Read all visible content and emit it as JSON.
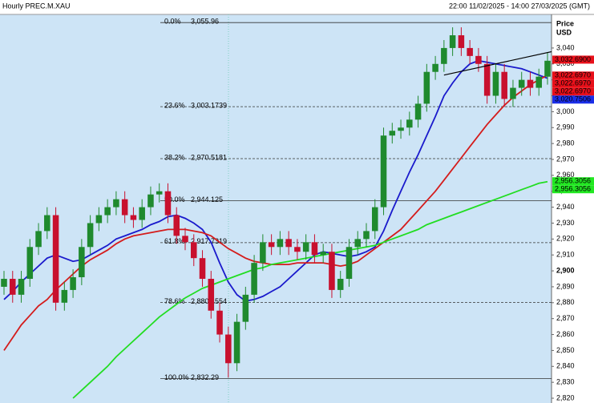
{
  "chart_data": {
    "type": "candlestick",
    "title": "Hourly PREC.M.XAU",
    "subtitle": "22:00 11/02/2025 - 14:00 27/03/2025 (GMT)",
    "y_axis_label": [
      "Price",
      "USD"
    ],
    "ylim": [
      2818.5,
      3061.1
    ],
    "yticks": [
      {
        "value": 2820,
        "label": "2,820"
      },
      {
        "value": 2830,
        "label": "2,830"
      },
      {
        "value": 2840,
        "label": "2,840"
      },
      {
        "value": 2850,
        "label": "2,850"
      },
      {
        "value": 2860,
        "label": "2,860"
      },
      {
        "value": 2870,
        "label": "2,870"
      },
      {
        "value": 2880,
        "label": "2,880"
      },
      {
        "value": 2890,
        "label": "2,890"
      },
      {
        "value": 2900,
        "label": "2,900"
      },
      {
        "value": 2910,
        "label": "2,910"
      },
      {
        "value": 2920,
        "label": "2,920"
      },
      {
        "value": 2930,
        "label": "2,930"
      },
      {
        "value": 2940,
        "label": "2,940"
      },
      {
        "value": 2950,
        "label": "2,950"
      },
      {
        "value": 2960,
        "label": "2,960"
      },
      {
        "value": 2970,
        "label": "2,970"
      },
      {
        "value": 2980,
        "label": "2,980"
      },
      {
        "value": 2990,
        "label": "2,990"
      },
      {
        "value": 3000,
        "label": "3,000"
      },
      {
        "value": 3010,
        "label": "3,010"
      },
      {
        "value": 3020,
        "label": "3,020"
      },
      {
        "value": 3030,
        "label": "3,030"
      },
      {
        "value": 3040,
        "label": "3,040"
      }
    ],
    "bold_ytick": 2900,
    "up_color": "#1f8a2e",
    "down_color": "#c8102e",
    "open": [
      2890,
      2895,
      2885,
      2895,
      2915,
      2925,
      2935,
      2880,
      2888,
      2896,
      2915,
      2930,
      2935,
      2940,
      2945,
      2935,
      2932,
      2940,
      2948,
      2950,
      2935,
      2922,
      2918,
      2908,
      2895,
      2875,
      2860,
      2842,
      2868,
      2885,
      2905,
      2918,
      2915,
      2920,
      2915,
      2912,
      2918,
      2910,
      2912,
      2888,
      2895,
      2915,
      2920,
      2925,
      2940,
      2985,
      2988,
      2990,
      2995,
      3005,
      3025,
      3030,
      3040,
      3048,
      3040,
      3035,
      3030,
      3010,
      3025,
      3008,
      3015,
      3020,
      3015,
      3022
    ],
    "high": [
      2900,
      2900,
      2900,
      2920,
      2930,
      2940,
      2940,
      2893,
      2901,
      2920,
      2935,
      2940,
      2945,
      2950,
      2950,
      2940,
      2945,
      2953,
      2955,
      2955,
      2940,
      2927,
      2923,
      2913,
      2900,
      2880,
      2865,
      2873,
      2890,
      2910,
      2923,
      2923,
      2925,
      2925,
      2920,
      2923,
      2923,
      2917,
      2917,
      2900,
      2920,
      2925,
      2930,
      2945,
      2990,
      2993,
      2995,
      3000,
      3010,
      3030,
      3035,
      3045,
      3053,
      3053,
      3045,
      3040,
      3035,
      3030,
      3030,
      3020,
      3025,
      3025,
      3027,
      3037
    ],
    "low": [
      2885,
      2880,
      2880,
      2890,
      2910,
      2920,
      2875,
      2875,
      2883,
      2891,
      2910,
      2925,
      2930,
      2935,
      2930,
      2927,
      2927,
      2935,
      2943,
      2930,
      2917,
      2913,
      2903,
      2890,
      2870,
      2855,
      2833,
      2837,
      2863,
      2880,
      2900,
      2910,
      2910,
      2910,
      2907,
      2907,
      2905,
      2905,
      2883,
      2883,
      2890,
      2910,
      2915,
      2920,
      2935,
      2980,
      2983,
      2985,
      2990,
      3000,
      3020,
      3025,
      3035,
      3035,
      3030,
      3025,
      3005,
      3005,
      3003,
      3003,
      3010,
      3010,
      3010,
      3017
    ],
    "close": [
      2895,
      2885,
      2895,
      2915,
      2925,
      2935,
      2880,
      2888,
      2896,
      2915,
      2930,
      2935,
      2940,
      2945,
      2935,
      2932,
      2940,
      2948,
      2950,
      2935,
      2922,
      2918,
      2908,
      2895,
      2875,
      2860,
      2842,
      2868,
      2885,
      2905,
      2918,
      2915,
      2920,
      2915,
      2912,
      2918,
      2910,
      2912,
      2888,
      2895,
      2915,
      2920,
      2925,
      2940,
      2985,
      2988,
      2990,
      2995,
      3005,
      3025,
      3030,
      3040,
      3048,
      3040,
      3035,
      3030,
      3010,
      3025,
      3008,
      3015,
      3020,
      3015,
      3022,
      3032
    ],
    "series": [
      {
        "color": "#1a1acc",
        "values": [
          2882,
          2887,
          2893,
          2898,
          2903,
          2908,
          2910,
          2908,
          2906,
          2907,
          2910,
          2913,
          2916,
          2920,
          2922,
          2924,
          2926,
          2929,
          2931,
          2934,
          2935,
          2933,
          2930,
          2926,
          2918,
          2905,
          2893,
          2885,
          2881,
          2882,
          2884,
          2887,
          2890,
          2895,
          2900,
          2905,
          2910,
          2912,
          2911,
          2910,
          2909,
          2910,
          2912,
          2915,
          2925,
          2938,
          2950,
          2962,
          2973,
          2985,
          2997,
          3010,
          3018,
          3025,
          3030,
          3032,
          3031,
          3030,
          3029,
          3028,
          3027,
          3025,
          3023,
          3021
        ]
      },
      {
        "color": "#d41c1c",
        "values": [
          2850,
          2858,
          2866,
          2872,
          2878,
          2882,
          2888,
          2893,
          2898,
          2903,
          2907,
          2910,
          2913,
          2917,
          2920,
          2922,
          2923,
          2924,
          2925,
          2926,
          2926,
          2926,
          2925,
          2924,
          2922,
          2918,
          2914,
          2911,
          2908,
          2906,
          2905,
          2904,
          2904,
          2904,
          2905,
          2905,
          2905,
          2905,
          2904,
          2903,
          2904,
          2906,
          2910,
          2914,
          2918,
          2922,
          2926,
          2932,
          2938,
          2944,
          2950,
          2957,
          2964,
          2971,
          2978,
          2985,
          2992,
          2998,
          3004,
          3009,
          3013,
          3017,
          3020,
          3023
        ]
      },
      {
        "color": "#22dd22",
        "values": [
          null,
          null,
          null,
          null,
          null,
          null,
          null,
          null,
          2820,
          2825,
          2830,
          2835,
          2840,
          2846,
          2851,
          2856,
          2861,
          2866,
          2871,
          2875,
          2879,
          2883,
          2886,
          2889,
          2891,
          2893,
          2895,
          2897,
          2899,
          2901,
          2902,
          2904,
          2905,
          2906,
          2907,
          2908,
          2909,
          2910,
          2911,
          2912,
          2913,
          2914,
          2915,
          2916,
          2918,
          2920,
          2922,
          2924,
          2926,
          2929,
          2931,
          2933,
          2935,
          2937,
          2939,
          2941,
          2943,
          2945,
          2947,
          2949,
          2951,
          2953,
          2955,
          2956
        ]
      }
    ],
    "fib_levels": [
      {
        "ratio": "0.0%",
        "label": "3,055.96",
        "value": 3055.96,
        "style": "solid"
      },
      {
        "ratio": "23.6%",
        "label": "3,003.1739",
        "value": 3003.1739,
        "style": "dashed"
      },
      {
        "ratio": "38.2%",
        "label": "2,970.5181",
        "value": 2970.5181,
        "style": "dashed"
      },
      {
        "ratio": "50.0%",
        "label": "2,944.125",
        "value": 2944.125,
        "style": "solid"
      },
      {
        "ratio": "61.8%",
        "label": "2,917.7319",
        "value": 2917.7319,
        "style": "dashed"
      },
      {
        "ratio": "78.6%",
        "label": "2,880.1554",
        "value": 2880.1554,
        "style": "dashed"
      },
      {
        "ratio": "100.0%",
        "label": "2,832.29",
        "value": 2832.29,
        "style": "solid"
      }
    ],
    "trendline": {
      "x": [
        51,
        63
      ],
      "values": [
        3023,
        3038
      ],
      "color": "#000000"
    },
    "price_tags": [
      {
        "value": 3032.69,
        "label": "3,032.6900",
        "color": "#e8101a",
        "text_color": "#000000"
      },
      {
        "value": 3022.697,
        "label": "3,022.6970",
        "color": "#e8101a",
        "text_color": "#000000"
      },
      {
        "value": 3022.697,
        "label": "3,022.6970",
        "color": "#e8101a",
        "text_color": "#000000"
      },
      {
        "value": 3022.697,
        "label": "3,022.6970",
        "color": "#e8101a",
        "text_color": "#000000"
      },
      {
        "value": 3020.7506,
        "label": "3,020.7506",
        "color": "#1a2ee8",
        "text_color": "#ffffff"
      },
      {
        "value": 2956.3056,
        "label": "2,956.3056",
        "color": "#22e822",
        "text_color": "#000000"
      },
      {
        "value": 2956.3056,
        "label": "2,956.3056",
        "color": "#22e822",
        "text_color": "#000000"
      }
    ]
  }
}
